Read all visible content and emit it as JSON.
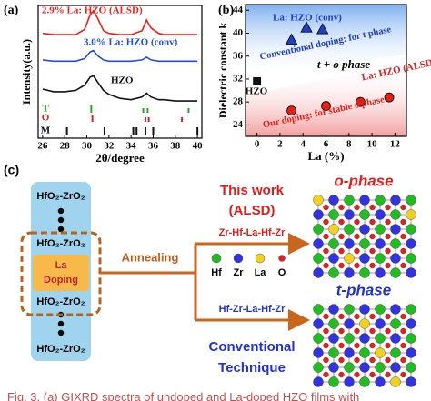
{
  "chart_data": [
    {
      "type": "line",
      "panel_label": "(a)",
      "xlabel": "2θ/degree",
      "ylabel": "Intensity(a.u.)",
      "xlim": [
        25.6,
        40.4
      ],
      "xticks": [
        26,
        28,
        30,
        32,
        34,
        36,
        38,
        40
      ],
      "ylim": [
        0,
        10
      ],
      "x": [
        26,
        27,
        28,
        29,
        29.8,
        30.3,
        30.6,
        31,
        31.5,
        32,
        33,
        34,
        35,
        35.4,
        35.8,
        36.5,
        37,
        38,
        39,
        40
      ],
      "series": [
        {
          "name": "2.9% La: HZO (ALSD)",
          "color": "#e8221b",
          "values": [
            7.9,
            7.8,
            7.8,
            7.8,
            8.2,
            9.3,
            9.6,
            9.0,
            8.1,
            7.9,
            7.8,
            7.8,
            8.1,
            8.9,
            8.3,
            7.9,
            7.8,
            7.8,
            7.8,
            7.8
          ]
        },
        {
          "name": "3.0% La: HZO (conv)",
          "color": "#1f4fd8",
          "values": [
            5.9,
            5.8,
            5.8,
            5.8,
            6.0,
            6.5,
            6.6,
            6.2,
            5.9,
            5.8,
            5.8,
            5.8,
            5.9,
            6.1,
            5.9,
            5.8,
            5.8,
            5.8,
            5.8,
            5.8
          ]
        },
        {
          "name": "HZO",
          "color": "#111111",
          "values": [
            3.7,
            3.5,
            3.5,
            3.6,
            4.0,
            4.6,
            4.7,
            4.2,
            3.6,
            3.3,
            3.0,
            2.9,
            3.1,
            3.4,
            3.1,
            2.9,
            2.9,
            2.8,
            2.8,
            2.8
          ]
        }
      ],
      "references": [
        {
          "name": "T",
          "color": "#22aa22",
          "positions": [
            30.4,
            35.1,
            35.5,
            39.2
          ]
        },
        {
          "name": "O",
          "color": "#dd2222",
          "positions": [
            30.5,
            35.3,
            35.6,
            38.6
          ]
        },
        {
          "name": "M",
          "color": "#111111",
          "positions": [
            28.2,
            31.6,
            34.2,
            34.5,
            35.3,
            36.0,
            40.0
          ]
        }
      ]
    },
    {
      "type": "scatter",
      "panel_label": "(b)",
      "xlabel": "La (%)",
      "ylabel": "Dielectric constant k",
      "xlim": [
        -1,
        13
      ],
      "xticks": [
        0,
        2,
        4,
        6,
        8,
        10,
        12
      ],
      "ylim": [
        22,
        45
      ],
      "yticks": [
        24,
        28,
        32,
        36,
        40,
        44
      ],
      "series": [
        {
          "name": "La: HZO (conv)",
          "color": "#1f3fbf",
          "marker": "triangle",
          "x": [
            3,
            4.3,
            5.7
          ],
          "values": [
            38.9,
            41,
            40.7
          ]
        },
        {
          "name": "La: HZO (ALSD)",
          "color": "#e0201b",
          "marker": "circle",
          "x": [
            3,
            6,
            9,
            11.5
          ],
          "values": [
            26.5,
            27.3,
            28,
            28.8
          ]
        },
        {
          "name": "HZO",
          "color": "#111111",
          "marker": "square",
          "x": [
            0
          ],
          "values": [
            31.6
          ]
        }
      ],
      "annotations": [
        "Conventional doping: for t phase",
        "t + o phase",
        "Our doping: for stable o phase"
      ]
    }
  ],
  "diagram": {
    "panel_label": "(c)",
    "layers": [
      "HfO₂-ZrO₂",
      "HfO₂-ZrO₂",
      "HfO₂-ZrO₂",
      "HfO₂-ZrO₂"
    ],
    "doping": [
      "La",
      "Doping"
    ],
    "process": "Annealing",
    "this_work": {
      "title": "This work",
      "method": "(ALSD)",
      "sequence": "Zr-Hf-La-Hf-Zr"
    },
    "elements": [
      {
        "symbol": "Hf",
        "color": "#22bb22"
      },
      {
        "symbol": "Zr",
        "color": "#3333dd"
      },
      {
        "symbol": "La",
        "color": "#f0d020"
      },
      {
        "symbol": "O",
        "color": "#dd2222"
      }
    ],
    "conventional": {
      "sequence": "Hf-Zr-La-Hf-Zr",
      "title": "Conventional",
      "subtitle": "Technique"
    },
    "phases": [
      {
        "name": "o-phase",
        "color": "#dd2222"
      },
      {
        "name": "t-phase",
        "color": "#2233cc"
      }
    ]
  },
  "caption": "Fig. 3.   (a) GIXRD spectra of undoped and La-doped HZO films with"
}
